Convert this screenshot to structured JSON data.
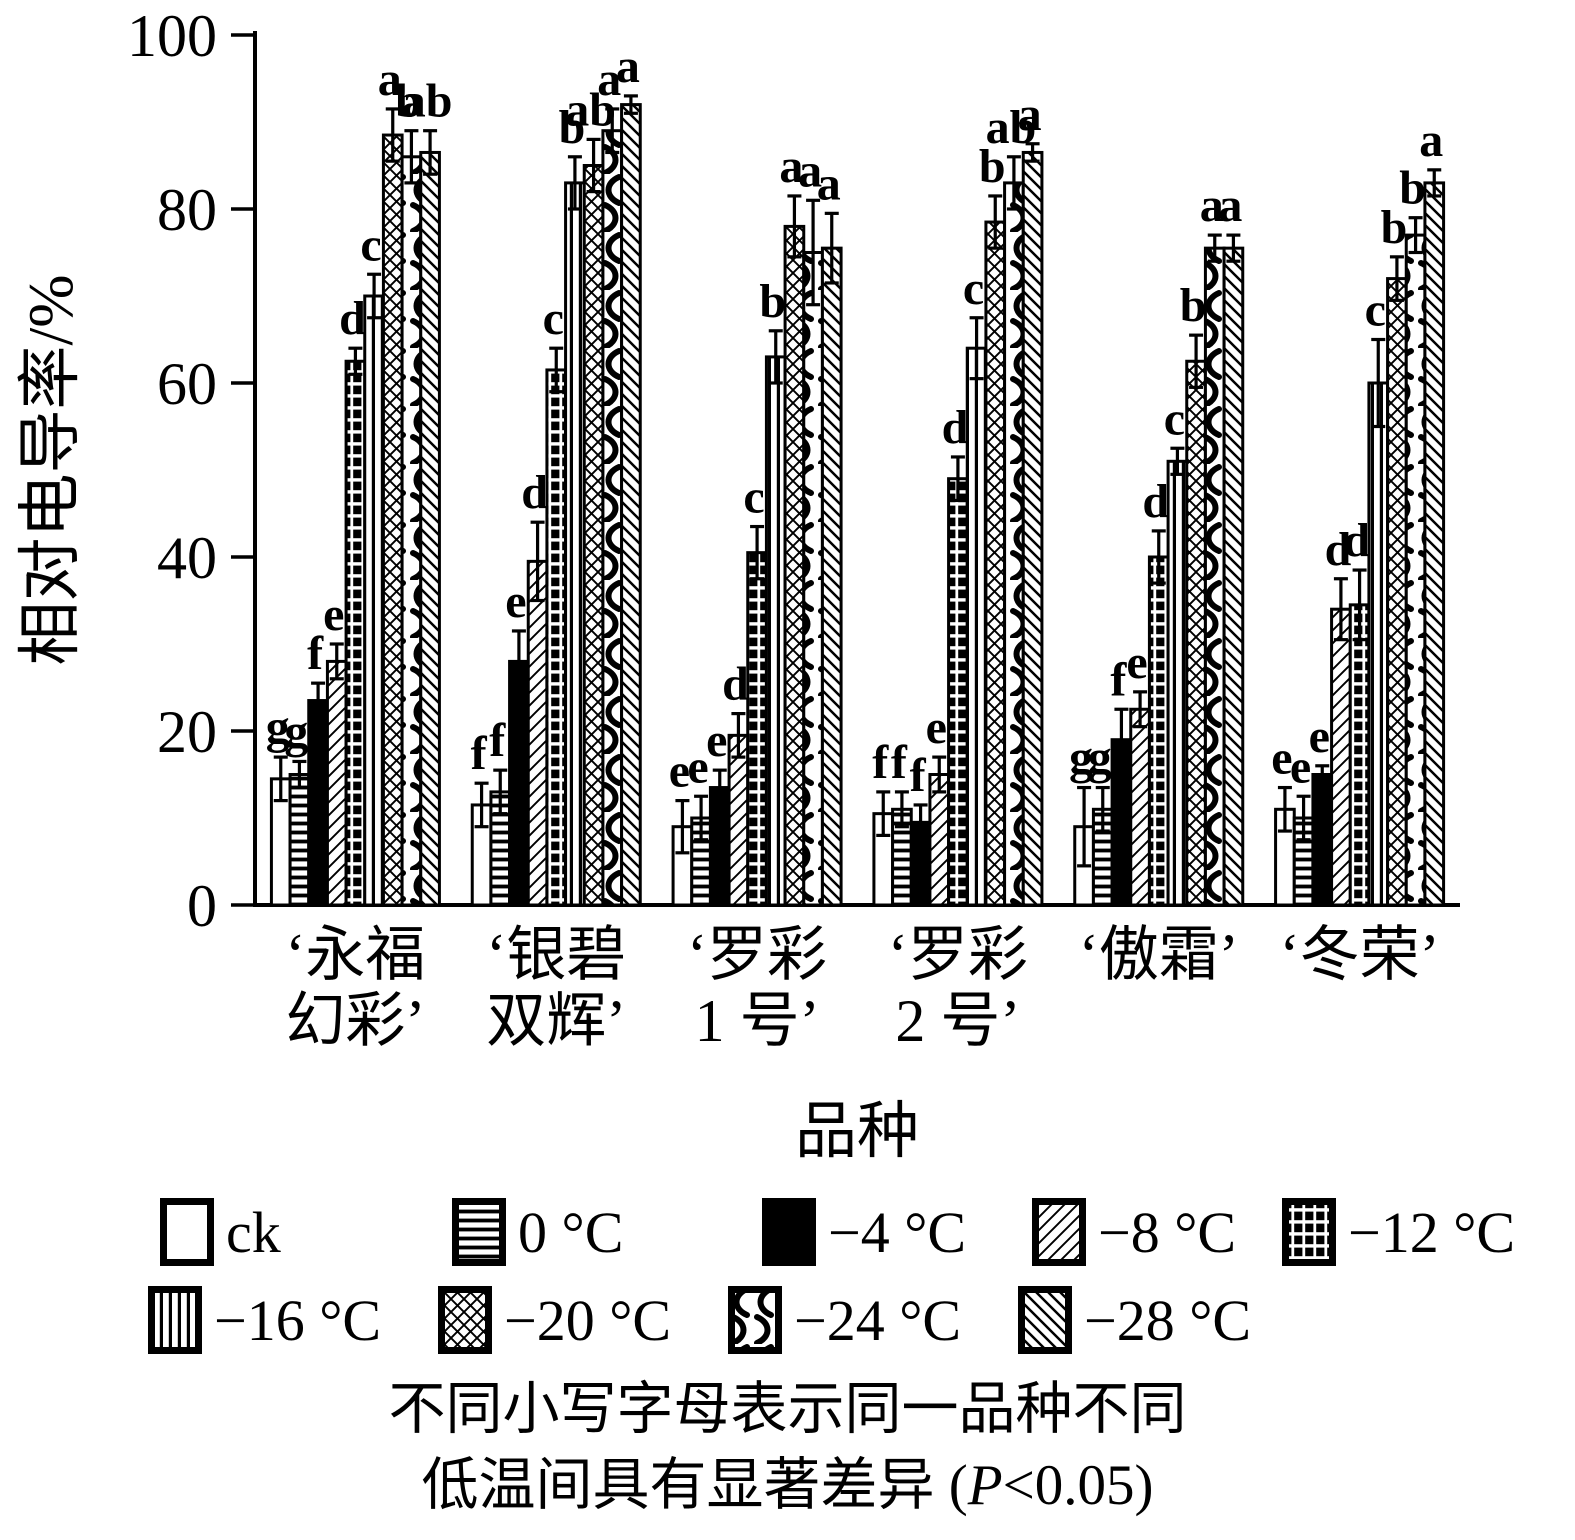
{
  "chart_data": {
    "type": "bar",
    "title": "",
    "ylabel": "相对电导率/%",
    "xlabel": "品种",
    "ylim": [
      0,
      100
    ],
    "yticks": [
      0,
      20,
      40,
      60,
      80,
      100
    ],
    "grid": false,
    "legend_position": "bottom",
    "categories": [
      {
        "name": "‘永福幻彩’",
        "lines": [
          "‘永福",
          "幻彩’"
        ]
      },
      {
        "name": "‘银碧双辉’",
        "lines": [
          "‘银碧",
          "双辉’"
        ]
      },
      {
        "name": "‘罗彩1号’",
        "lines": [
          "‘罗彩",
          "1 号’"
        ]
      },
      {
        "name": "‘罗彩2号’",
        "lines": [
          "‘罗彩",
          "2 号’"
        ]
      },
      {
        "name": "‘傲霜’",
        "lines": [
          "‘傲霜’"
        ]
      },
      {
        "name": "‘冬荣’",
        "lines": [
          "‘冬荣’"
        ]
      }
    ],
    "series": [
      {
        "name": "ck",
        "pattern": "plain",
        "values": [
          14.5,
          11.5,
          9,
          10.5,
          9,
          11
        ],
        "errors": [
          2.5,
          2.5,
          3,
          2.5,
          4.5,
          2.5
        ],
        "letters": [
          "g",
          "f",
          "e",
          "f",
          "g",
          "e"
        ]
      },
      {
        "name": "0 °C",
        "pattern": "hlines",
        "values": [
          15,
          13,
          10,
          11,
          11,
          10
        ],
        "errors": [
          1.5,
          2.5,
          2.5,
          2,
          2.5,
          2.5
        ],
        "letters": [
          "g",
          "f",
          "e",
          "f",
          "g",
          "e"
        ]
      },
      {
        "name": "−4 °C",
        "pattern": "solid",
        "values": [
          23.5,
          28,
          13.5,
          9.5,
          19,
          15
        ],
        "errors": [
          2,
          3.5,
          2,
          2,
          3.5,
          1
        ],
        "letters": [
          "f",
          "e",
          "e",
          "f",
          "f",
          "e"
        ]
      },
      {
        "name": "−8 °C",
        "pattern": "diagf",
        "values": [
          28,
          39.5,
          19.5,
          15,
          22.5,
          34
        ],
        "errors": [
          2,
          4.5,
          2.5,
          2,
          2,
          3.5
        ],
        "letters": [
          "e",
          "d",
          "d",
          "e",
          "e",
          "d"
        ]
      },
      {
        "name": "−12 °C",
        "pattern": "blocks",
        "values": [
          62.5,
          61.5,
          40.5,
          49,
          40,
          34.5
        ],
        "errors": [
          1.5,
          2.5,
          3,
          2.5,
          3,
          4
        ],
        "letters": [
          "d",
          "c",
          "c",
          "d",
          "d",
          "d"
        ]
      },
      {
        "name": "−16 °C",
        "pattern": "vlines",
        "values": [
          70,
          83,
          63,
          64,
          51,
          60
        ],
        "errors": [
          2.5,
          3,
          3,
          3.5,
          1.5,
          5
        ],
        "letters": [
          "c",
          "b",
          "b",
          "c",
          "c",
          "c"
        ]
      },
      {
        "name": "−20 °C",
        "pattern": "cross",
        "values": [
          88.5,
          85,
          78,
          78.5,
          62.5,
          72
        ],
        "errors": [
          3,
          3,
          3.5,
          3,
          3,
          2.5
        ],
        "letters": [
          "a",
          "ab",
          "a",
          "b",
          "b",
          "b"
        ]
      },
      {
        "name": "−24 °C",
        "pattern": "waves",
        "values": [
          86,
          89,
          75,
          83,
          75.5,
          77
        ],
        "errors": [
          3,
          2.5,
          6,
          3,
          1.5,
          2
        ],
        "letters": [
          "b",
          "a",
          "a",
          "ab",
          "a",
          "b"
        ]
      },
      {
        "name": "−28 °C",
        "pattern": "diagb",
        "values": [
          86.5,
          92,
          75.5,
          86.5,
          75.5,
          83
        ],
        "errors": [
          2.5,
          1,
          4,
          1,
          1.5,
          1.5
        ],
        "letters": [
          "ab",
          "a",
          "a",
          "a",
          "a",
          "a"
        ]
      }
    ]
  },
  "legend": {
    "rows": [
      [
        {
          "label": "ck",
          "pattern": "plain",
          "icon": "empty-swatch-icon"
        },
        {
          "label": "0 °C",
          "pattern": "hlines",
          "icon": "hlines-swatch-icon"
        },
        {
          "label": "−4 °C",
          "pattern": "solid",
          "icon": "solid-swatch-icon"
        },
        {
          "label": "−8 °C",
          "pattern": "diagf",
          "icon": "diagonal-swatch-icon"
        },
        {
          "label": "−12 °C",
          "pattern": "blocks",
          "icon": "grid-blocks-swatch-icon"
        }
      ],
      [
        {
          "label": "−16 °C",
          "pattern": "vlines",
          "icon": "vlines-swatch-icon"
        },
        {
          "label": "−20 °C",
          "pattern": "cross",
          "icon": "crosshatch-swatch-icon"
        },
        {
          "label": "−24 °C",
          "pattern": "waves",
          "icon": "waves-swatch-icon"
        },
        {
          "label": "−28 °C",
          "pattern": "diagb",
          "icon": "back-diagonal-swatch-icon"
        }
      ]
    ]
  },
  "footnote": {
    "line1": "不同小写字母表示同一品种不同",
    "line2_before_p": "低温间具有显著差异 (",
    "p": "P",
    "line2_after_p": "<0.05)"
  },
  "colors": {
    "ink": "#000000",
    "background": "#ffffff"
  }
}
